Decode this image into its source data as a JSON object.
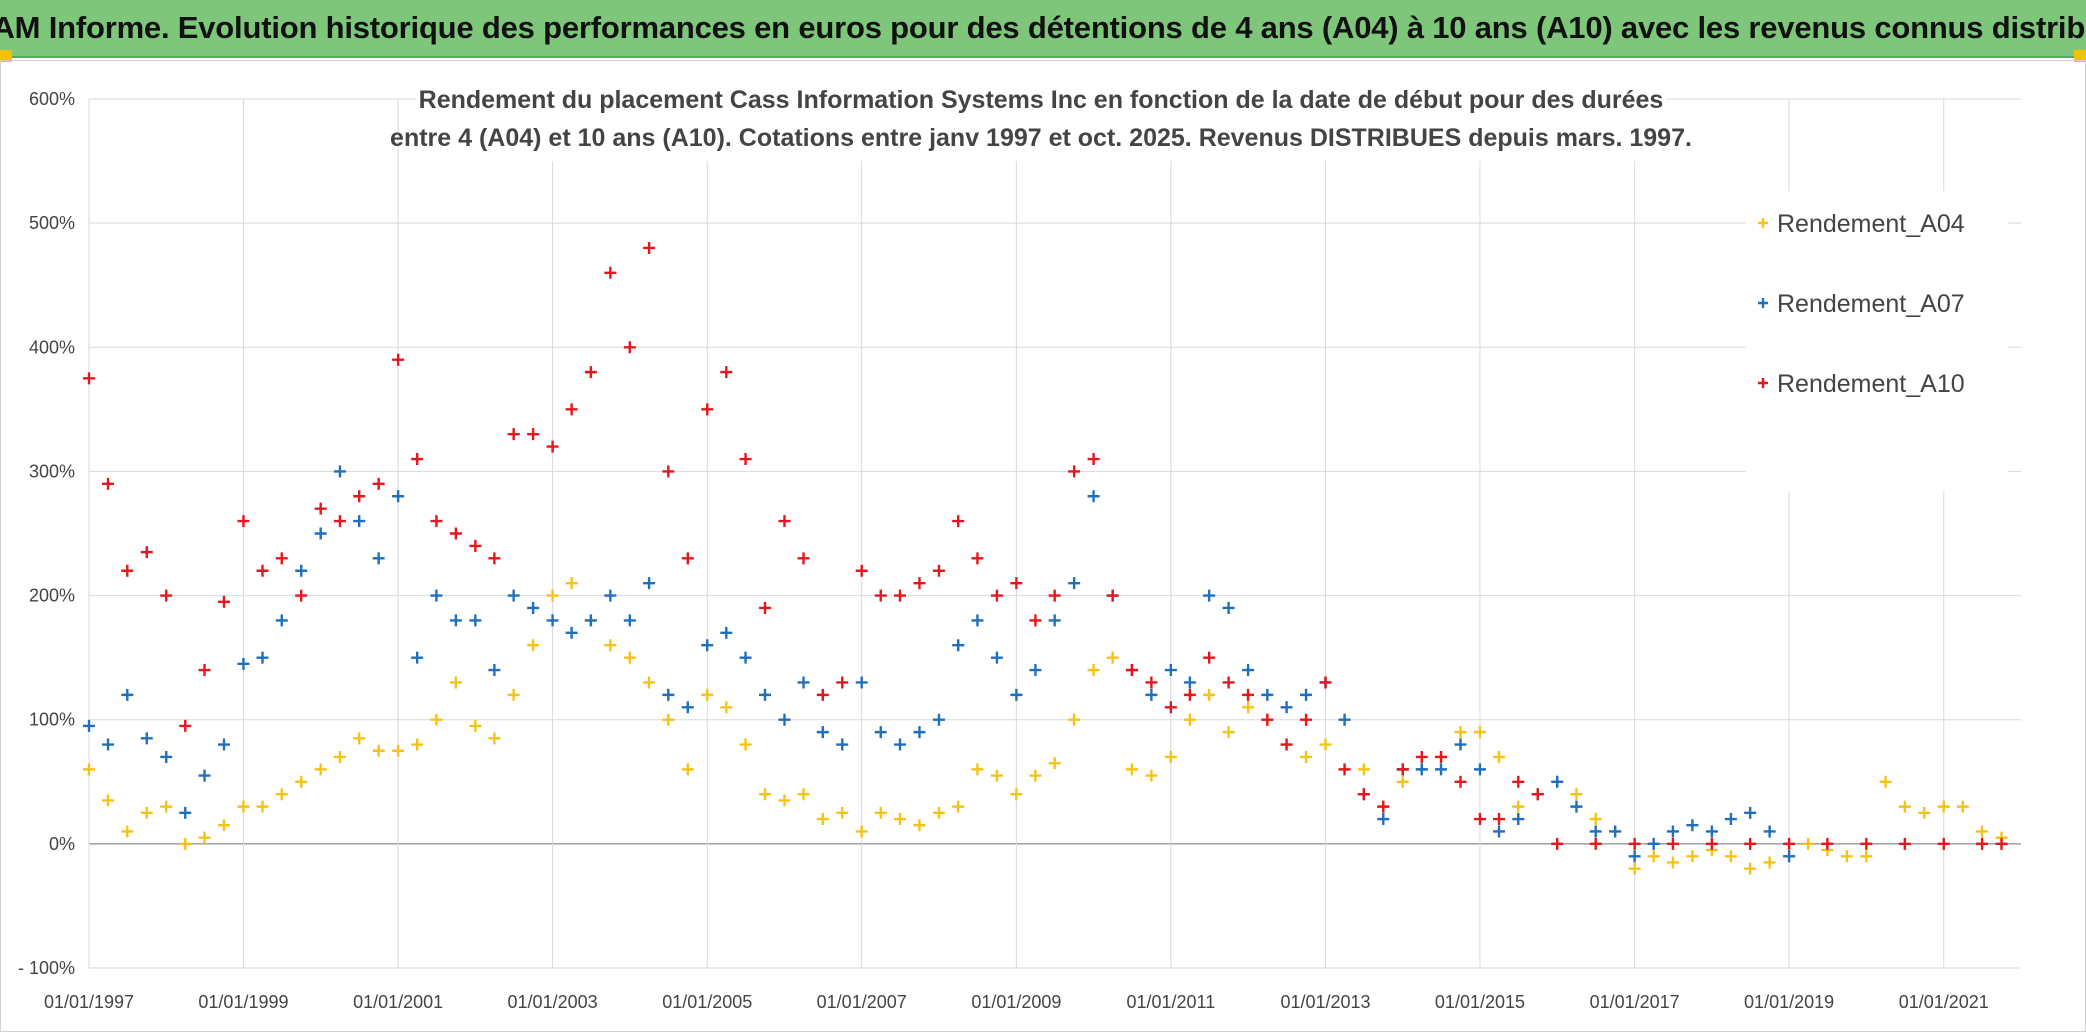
{
  "banner": {
    "title": "ADAM Informe. Evolution historique des performances en euros pour des détentions de 4 ans (A04) à 10 ans (A10) avec les revenus connus distribués"
  },
  "colors": {
    "banner_bg": "#7dc67a",
    "A04": "#f5c318",
    "A07": "#1f6fbf",
    "A10": "#e3171d",
    "grid": "#d9d9d9",
    "zero_line": "#a6a6a6"
  },
  "chart_data": {
    "type": "scatter",
    "title_lines": [
      "Rendement du placement Cass Information Systems Inc en fonction de la date de début pour des durées",
      "entre 4 (A04) et 10 ans (A10). Cotations entre janv 1997 et oct. 2025. Revenus DISTRIBUES depuis mars. 1997."
    ],
    "xlabel": "",
    "ylabel": "",
    "x_range": [
      "1997-01-01",
      "2022-01-01"
    ],
    "ylim": [
      -100,
      600
    ],
    "y_ticks": [
      -100,
      0,
      100,
      200,
      300,
      400,
      500,
      600
    ],
    "y_tick_labels": [
      "- 100%",
      "0%",
      "100%",
      "200%",
      "300%",
      "400%",
      "500%",
      "600%"
    ],
    "x_ticks": [
      "1997-01-01",
      "1999-01-01",
      "2001-01-01",
      "2003-01-01",
      "2005-01-01",
      "2007-01-01",
      "2009-01-01",
      "2011-01-01",
      "2013-01-01",
      "2015-01-01",
      "2017-01-01",
      "2019-01-01",
      "2021-01-01"
    ],
    "x_tick_labels": [
      "01/01/1997",
      "01/01/1999",
      "01/01/2001",
      "01/01/2003",
      "01/01/2005",
      "01/01/2007",
      "01/01/2009",
      "01/01/2011",
      "01/01/2013",
      "01/01/2015",
      "01/01/2017",
      "01/01/2019",
      "01/01/2021"
    ],
    "grid": true,
    "legend_position": "top-right",
    "marker": "+",
    "series": [
      {
        "name": "Rendement_A04",
        "color": "#f5c318",
        "x": [
          "1997-01-01",
          "1997-04-01",
          "1997-07-01",
          "1997-10-01",
          "1998-01-01",
          "1998-04-01",
          "1998-07-01",
          "1998-10-01",
          "1999-01-01",
          "1999-04-01",
          "1999-07-01",
          "1999-10-01",
          "2000-01-01",
          "2000-04-01",
          "2000-07-01",
          "2000-10-01",
          "2001-01-01",
          "2001-04-01",
          "2001-07-01",
          "2001-10-01",
          "2002-01-01",
          "2002-04-01",
          "2002-07-01",
          "2002-10-01",
          "2003-01-01",
          "2003-04-01",
          "2003-07-01",
          "2003-10-01",
          "2004-01-01",
          "2004-04-01",
          "2004-07-01",
          "2004-10-01",
          "2005-01-01",
          "2005-04-01",
          "2005-07-01",
          "2005-10-01",
          "2006-01-01",
          "2006-04-01",
          "2006-07-01",
          "2006-10-01",
          "2007-01-01",
          "2007-04-01",
          "2007-07-01",
          "2007-10-01",
          "2008-01-01",
          "2008-04-01",
          "2008-07-01",
          "2008-10-01",
          "2009-01-01",
          "2009-04-01",
          "2009-07-01",
          "2009-10-01",
          "2010-01-01",
          "2010-04-01",
          "2010-07-01",
          "2010-10-01",
          "2011-01-01",
          "2011-04-01",
          "2011-07-01",
          "2011-10-01",
          "2012-01-01",
          "2012-04-01",
          "2012-07-01",
          "2012-10-01",
          "2013-01-01",
          "2013-04-01",
          "2013-07-01",
          "2013-10-01",
          "2014-01-01",
          "2014-04-01",
          "2014-07-01",
          "2014-10-01",
          "2015-01-01",
          "2015-04-01",
          "2015-07-01",
          "2015-10-01",
          "2016-01-01",
          "2016-04-01",
          "2016-07-01",
          "2016-10-01",
          "2017-01-01",
          "2017-04-01",
          "2017-07-01",
          "2017-10-01",
          "2018-01-01",
          "2018-04-01",
          "2018-07-01",
          "2018-10-01",
          "2019-01-01",
          "2019-04-01",
          "2019-07-01",
          "2019-10-01",
          "2020-01-01",
          "2020-04-01",
          "2020-07-01",
          "2020-10-01",
          "2021-01-01",
          "2021-04-01",
          "2021-07-01",
          "2021-10-01"
        ],
        "y": [
          60,
          35,
          10,
          25,
          30,
          0,
          5,
          15,
          30,
          30,
          40,
          50,
          60,
          70,
          85,
          75,
          75,
          80,
          100,
          130,
          95,
          85,
          120,
          160,
          200,
          210,
          180,
          160,
          150,
          130,
          100,
          60,
          120,
          110,
          80,
          40,
          35,
          40,
          20,
          25,
          10,
          25,
          20,
          15,
          25,
          30,
          60,
          55,
          40,
          55,
          65,
          100,
          140,
          150,
          60,
          55,
          70,
          100,
          120,
          90,
          110,
          100,
          80,
          70,
          80,
          100,
          60,
          30,
          50,
          60,
          70,
          90,
          90,
          70,
          30,
          40,
          50,
          40,
          20,
          10,
          -20,
          -10,
          -15,
          -10,
          -5,
          -10,
          -20,
          -15,
          -10,
          0,
          -5,
          -10,
          -10,
          50,
          30,
          25,
          30,
          30,
          10,
          5
        ]
      },
      {
        "name": "Rendement_A07",
        "color": "#1f6fbf",
        "x": [
          "1997-01-01",
          "1997-04-01",
          "1997-07-01",
          "1997-10-01",
          "1998-01-01",
          "1998-04-01",
          "1998-07-01",
          "1998-10-01",
          "1999-01-01",
          "1999-04-01",
          "1999-07-01",
          "1999-10-01",
          "2000-01-01",
          "2000-04-01",
          "2000-07-01",
          "2000-10-01",
          "2001-01-01",
          "2001-04-01",
          "2001-07-01",
          "2001-10-01",
          "2002-01-01",
          "2002-04-01",
          "2002-07-01",
          "2002-10-01",
          "2003-01-01",
          "2003-04-01",
          "2003-07-01",
          "2003-10-01",
          "2004-01-01",
          "2004-04-01",
          "2004-07-01",
          "2004-10-01",
          "2005-01-01",
          "2005-04-01",
          "2005-07-01",
          "2005-10-01",
          "2006-01-01",
          "2006-04-01",
          "2006-07-01",
          "2006-10-01",
          "2007-01-01",
          "2007-04-01",
          "2007-07-01",
          "2007-10-01",
          "2008-01-01",
          "2008-04-01",
          "2008-07-01",
          "2008-10-01",
          "2009-01-01",
          "2009-04-01",
          "2009-07-01",
          "2009-10-01",
          "2010-01-01",
          "2010-04-01",
          "2010-07-01",
          "2010-10-01",
          "2011-01-01",
          "2011-04-01",
          "2011-07-01",
          "2011-10-01",
          "2012-01-01",
          "2012-04-01",
          "2012-07-01",
          "2012-10-01",
          "2013-01-01",
          "2013-04-01",
          "2013-07-01",
          "2013-10-01",
          "2014-01-01",
          "2014-04-01",
          "2014-07-01",
          "2014-10-01",
          "2015-01-01",
          "2015-04-01",
          "2015-07-01",
          "2015-10-01",
          "2016-01-01",
          "2016-04-01",
          "2016-07-01",
          "2016-10-01",
          "2017-01-01",
          "2017-04-01",
          "2017-07-01",
          "2017-10-01",
          "2018-01-01",
          "2018-04-01",
          "2018-07-01",
          "2018-10-01",
          "2019-01-01"
        ],
        "y": [
          95,
          80,
          120,
          85,
          70,
          25,
          55,
          80,
          145,
          150,
          180,
          220,
          250,
          300,
          260,
          230,
          280,
          150,
          200,
          180,
          180,
          140,
          200,
          190,
          180,
          170,
          180,
          200,
          180,
          210,
          120,
          110,
          160,
          170,
          150,
          120,
          100,
          130,
          90,
          80,
          130,
          90,
          80,
          90,
          100,
          160,
          180,
          150,
          120,
          140,
          180,
          210,
          280,
          200,
          140,
          120,
          140,
          130,
          200,
          190,
          140,
          120,
          110,
          120,
          130,
          100,
          40,
          20,
          60,
          60,
          60,
          80,
          60,
          10,
          20,
          40,
          50,
          30,
          10,
          10,
          -10,
          0,
          10,
          15,
          10,
          20,
          25,
          10,
          -10
        ]
      },
      {
        "name": "Rendement_A10",
        "color": "#e3171d",
        "x": [
          "1997-01-01",
          "1997-04-01",
          "1997-07-01",
          "1997-10-01",
          "1998-01-01",
          "1998-04-01",
          "1998-07-01",
          "1998-10-01",
          "1999-01-01",
          "1999-04-01",
          "1999-07-01",
          "1999-10-01",
          "2000-01-01",
          "2000-04-01",
          "2000-07-01",
          "2000-10-01",
          "2001-01-01",
          "2001-04-01",
          "2001-07-01",
          "2001-10-01",
          "2002-01-01",
          "2002-04-01",
          "2002-07-01",
          "2002-10-01",
          "2003-01-01",
          "2003-04-01",
          "2003-07-01",
          "2003-10-01",
          "2004-01-01",
          "2004-04-01",
          "2004-07-01",
          "2004-10-01",
          "2005-01-01",
          "2005-04-01",
          "2005-07-01",
          "2005-10-01",
          "2006-01-01",
          "2006-04-01",
          "2006-07-01",
          "2006-10-01",
          "2007-01-01",
          "2007-04-01",
          "2007-07-01",
          "2007-10-01",
          "2008-01-01",
          "2008-04-01",
          "2008-07-01",
          "2008-10-01",
          "2009-01-01",
          "2009-04-01",
          "2009-07-01",
          "2009-10-01",
          "2010-01-01",
          "2010-04-01",
          "2010-07-01",
          "2010-10-01",
          "2011-01-01",
          "2011-04-01",
          "2011-07-01",
          "2011-10-01",
          "2012-01-01",
          "2012-04-01",
          "2012-07-01",
          "2012-10-01",
          "2013-01-01",
          "2013-04-01",
          "2013-07-01",
          "2013-10-01",
          "2014-01-01",
          "2014-04-01",
          "2014-07-01",
          "2014-10-01",
          "2015-01-01",
          "2015-04-01",
          "2015-07-01",
          "2015-10-01",
          "2016-01-01",
          "2016-07-01",
          "2017-01-01",
          "2017-07-01",
          "2018-01-01",
          "2018-07-01",
          "2019-01-01",
          "2019-07-01",
          "2020-01-01",
          "2020-07-01",
          "2021-01-01",
          "2021-07-01",
          "2021-10-01"
        ],
        "y": [
          375,
          290,
          220,
          235,
          200,
          95,
          140,
          195,
          260,
          220,
          230,
          200,
          270,
          260,
          280,
          290,
          390,
          310,
          260,
          250,
          240,
          230,
          330,
          330,
          320,
          350,
          380,
          460,
          400,
          480,
          300,
          230,
          350,
          380,
          310,
          190,
          260,
          230,
          120,
          130,
          220,
          200,
          200,
          210,
          220,
          260,
          230,
          200,
          210,
          180,
          200,
          300,
          310,
          200,
          140,
          130,
          110,
          120,
          150,
          130,
          120,
          100,
          80,
          100,
          130,
          60,
          40,
          30,
          60,
          70,
          70,
          50,
          20,
          20,
          50,
          40,
          0,
          0,
          0,
          0,
          0,
          0,
          0,
          0,
          0,
          0,
          0,
          0,
          0
        ]
      }
    ]
  }
}
